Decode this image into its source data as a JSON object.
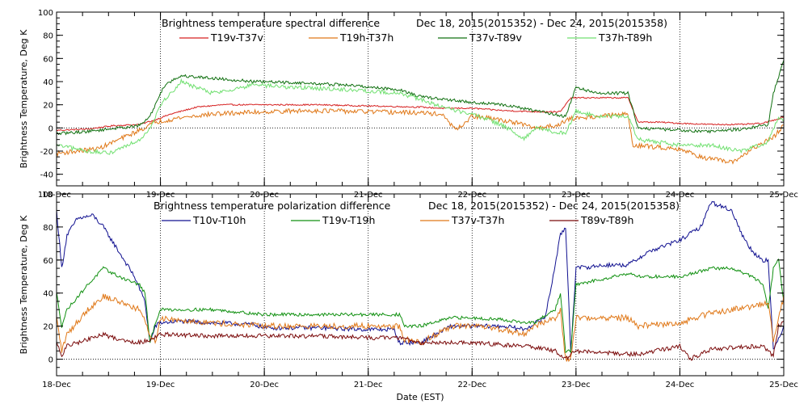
{
  "x_label": "Date (EST)",
  "chart_data": [
    {
      "type": "line",
      "title": "Brightness temperature spectral difference",
      "subtitle": "Dec 18, 2015(2015352) - Dec 24, 2015(2015358)",
      "xlabel": "Date (EST)",
      "ylabel": "Brightness Temperature, Deg K",
      "xlim": [
        0,
        7
      ],
      "ylim": [
        -50,
        100
      ],
      "y_ticks": [
        -40,
        -20,
        0,
        20,
        40,
        60,
        80,
        100
      ],
      "x_ticks": [
        "18-Dec",
        "19-Dec",
        "20-Dec",
        "21-Dec",
        "22-Dec",
        "23-Dec",
        "24-Dec",
        "25-Dec"
      ],
      "grid": true,
      "legend": "top",
      "series": [
        {
          "name": "T19v-T37v",
          "color": "#d62020",
          "noise": 0.6,
          "x": [
            0,
            0.3,
            0.55,
            0.8,
            0.95,
            1.1,
            1.35,
            1.6,
            2.0,
            2.5,
            3.0,
            3.5,
            3.7,
            4.0,
            4.3,
            4.6,
            4.85,
            4.95,
            5.1,
            5.3,
            5.5,
            5.6,
            5.8,
            6.0,
            6.3,
            6.6,
            6.8,
            6.95,
            7.0
          ],
          "y": [
            -2,
            -1,
            2,
            3,
            7,
            12,
            18,
            20,
            20,
            20,
            19,
            18,
            17,
            17,
            15,
            14,
            14,
            26,
            26,
            26,
            26,
            5,
            5,
            4,
            3,
            3,
            4,
            8,
            10
          ]
        },
        {
          "name": "T19h-T37h",
          "color": "#e07818",
          "noise": 2.0,
          "x": [
            0,
            0.4,
            0.6,
            0.8,
            0.95,
            1.2,
            1.5,
            2.0,
            2.5,
            3.0,
            3.5,
            3.7,
            3.85,
            4.0,
            4.2,
            4.4,
            4.6,
            4.8,
            4.95,
            5.2,
            5.5,
            5.55,
            6.0,
            6.2,
            6.5,
            6.7,
            6.9,
            7.0
          ],
          "y": [
            -22,
            -18,
            -10,
            -2,
            5,
            9,
            12,
            14,
            15,
            14,
            13,
            12,
            -2,
            10,
            8,
            5,
            0,
            2,
            8,
            10,
            12,
            -15,
            -18,
            -25,
            -30,
            -18,
            -8,
            2
          ]
        },
        {
          "name": "T37v-T89v",
          "color": "#107010",
          "noise": 1.3,
          "x": [
            0,
            0.3,
            0.6,
            0.8,
            0.9,
            1.0,
            1.05,
            1.2,
            1.5,
            1.9,
            2.3,
            2.8,
            3.3,
            3.5,
            3.7,
            4.0,
            4.3,
            4.6,
            4.9,
            5.0,
            5.2,
            5.5,
            5.6,
            6.0,
            6.3,
            6.6,
            6.85,
            6.9,
            7.0
          ],
          "y": [
            -5,
            -3,
            0,
            2,
            10,
            30,
            38,
            45,
            43,
            40,
            39,
            37,
            33,
            27,
            25,
            22,
            20,
            15,
            10,
            35,
            30,
            30,
            0,
            -2,
            -3,
            -1,
            3,
            30,
            58
          ]
        },
        {
          "name": "T37h-T89h",
          "color": "#70e070",
          "noise": 1.8,
          "x": [
            0,
            0.3,
            0.5,
            0.8,
            0.9,
            1.0,
            1.2,
            1.5,
            1.9,
            2.3,
            2.8,
            3.3,
            3.5,
            3.7,
            4.0,
            4.3,
            4.5,
            4.6,
            4.9,
            5.0,
            5.2,
            5.5,
            5.6,
            6.0,
            6.3,
            6.6,
            6.85,
            6.95,
            7.0
          ],
          "y": [
            -15,
            -20,
            -22,
            -10,
            0,
            20,
            40,
            30,
            37,
            35,
            33,
            30,
            25,
            18,
            12,
            2,
            -10,
            0,
            -5,
            15,
            10,
            10,
            -10,
            -15,
            -15,
            -20,
            -12,
            10,
            5
          ]
        }
      ]
    },
    {
      "type": "line",
      "title": "Brightness temperature polarization difference",
      "subtitle": "Dec 18, 2015(2015352) - Dec 24, 2015(2015358)",
      "xlabel": "Date (EST)",
      "ylabel": "Brightness Temperature, Deg K",
      "xlim": [
        0,
        7
      ],
      "ylim": [
        -10,
        100
      ],
      "y_ticks": [
        0,
        20,
        40,
        60,
        80,
        100
      ],
      "x_ticks": [
        "18-Dec",
        "19-Dec",
        "20-Dec",
        "21-Dec",
        "22-Dec",
        "23-Dec",
        "24-Dec",
        "25-Dec"
      ],
      "grid": true,
      "legend": "top",
      "series": [
        {
          "name": "T10v-T10h",
          "color": "#101090",
          "noise": 1.3,
          "x": [
            0,
            0.05,
            0.1,
            0.2,
            0.35,
            0.45,
            0.55,
            0.65,
            0.75,
            0.85,
            0.9,
            0.95,
            1.0,
            1.2,
            1.5,
            1.9,
            2.0,
            2.5,
            3.0,
            3.25,
            3.3,
            3.4,
            3.5,
            3.8,
            4.0,
            4.3,
            4.5,
            4.7,
            4.75,
            4.85,
            4.9,
            4.95,
            5.0,
            5.3,
            5.5,
            5.7,
            6.0,
            6.2,
            6.3,
            6.5,
            6.6,
            6.7,
            6.8,
            6.85,
            6.9,
            7.0
          ],
          "y": [
            90,
            55,
            75,
            85,
            87,
            80,
            70,
            60,
            50,
            35,
            10,
            20,
            22,
            23,
            22,
            21,
            19,
            19,
            18,
            18,
            10,
            10,
            10,
            20,
            20,
            20,
            18,
            25,
            40,
            75,
            80,
            5,
            55,
            57,
            57,
            65,
            72,
            80,
            95,
            90,
            75,
            65,
            60,
            60,
            5,
            20
          ]
        },
        {
          "name": "T19v-T19h",
          "color": "#109010",
          "noise": 1.0,
          "x": [
            0,
            0.05,
            0.1,
            0.3,
            0.45,
            0.6,
            0.8,
            0.85,
            0.9,
            0.95,
            1.0,
            1.5,
            2.0,
            2.5,
            3.0,
            3.3,
            3.35,
            3.5,
            3.8,
            4.0,
            4.3,
            4.5,
            4.6,
            4.8,
            4.85,
            4.9,
            4.95,
            5.0,
            5.5,
            5.6,
            6.0,
            6.3,
            6.5,
            6.7,
            6.8,
            6.85,
            6.9,
            6.95,
            7.0
          ],
          "y": [
            40,
            20,
            30,
            45,
            55,
            50,
            45,
            40,
            10,
            22,
            30,
            30,
            27,
            27,
            27,
            27,
            20,
            20,
            25,
            25,
            24,
            22,
            22,
            30,
            40,
            5,
            5,
            45,
            52,
            50,
            50,
            55,
            55,
            50,
            45,
            30,
            55,
            60,
            35
          ]
        },
        {
          "name": "T37v-T37h",
          "color": "#e07818",
          "noise": 1.8,
          "x": [
            0,
            0.05,
            0.1,
            0.3,
            0.45,
            0.6,
            0.8,
            0.9,
            0.95,
            1.0,
            1.5,
            2.0,
            2.5,
            3.0,
            3.3,
            3.35,
            3.5,
            3.8,
            4.0,
            4.3,
            4.5,
            4.6,
            4.8,
            4.85,
            4.9,
            4.95,
            5.0,
            5.3,
            5.5,
            5.6,
            6.0,
            6.3,
            6.5,
            6.7,
            6.85,
            6.9,
            7.0
          ],
          "y": [
            25,
            5,
            15,
            30,
            38,
            35,
            30,
            15,
            10,
            25,
            22,
            20,
            20,
            20,
            20,
            12,
            10,
            20,
            20,
            18,
            15,
            20,
            25,
            30,
            0,
            0,
            25,
            25,
            25,
            20,
            22,
            28,
            30,
            32,
            35,
            10,
            38
          ]
        },
        {
          "name": "T89v-T89h",
          "color": "#7a0a0a",
          "noise": 1.3,
          "x": [
            0,
            0.05,
            0.1,
            0.3,
            0.45,
            0.6,
            0.8,
            0.9,
            1.0,
            1.5,
            2.0,
            2.5,
            3.0,
            3.3,
            3.5,
            4.0,
            4.5,
            4.8,
            4.9,
            5.0,
            5.5,
            5.6,
            6.0,
            6.1,
            6.3,
            6.5,
            6.8,
            6.9,
            6.95,
            7.0
          ],
          "y": [
            10,
            2,
            8,
            12,
            15,
            12,
            10,
            12,
            15,
            14,
            14,
            14,
            13,
            13,
            10,
            10,
            8,
            5,
            0,
            5,
            3,
            3,
            8,
            0,
            6,
            7,
            8,
            2,
            20,
            22
          ]
        }
      ]
    }
  ]
}
